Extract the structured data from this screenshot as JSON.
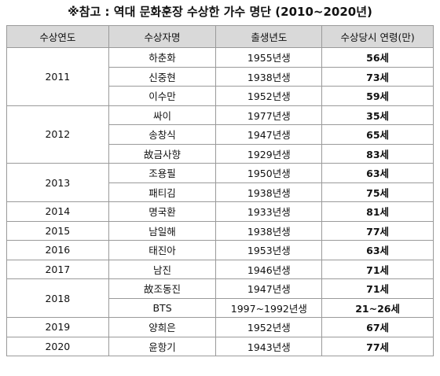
{
  "title": "※참고 : 역대 문화훈장 수상한 가수 명단 (2010~2020년)",
  "table": {
    "headers": [
      "수상연도",
      "수상자명",
      "출생년도",
      "수상당시 연령(만)"
    ],
    "groups": [
      {
        "year": "2011",
        "rows": [
          [
            "하춘화",
            "1955년생",
            "56세"
          ],
          [
            "신중현",
            "1938년생",
            "73세"
          ],
          [
            "이수만",
            "1952년생",
            "59세"
          ]
        ]
      },
      {
        "year": "2012",
        "rows": [
          [
            "싸이",
            "1977년생",
            "35세"
          ],
          [
            "송창식",
            "1947년생",
            "65세"
          ],
          [
            "故금사향",
            "1929년생",
            "83세"
          ]
        ]
      },
      {
        "year": "2013",
        "rows": [
          [
            "조용필",
            "1950년생",
            "63세"
          ],
          [
            "패티김",
            "1938년생",
            "75세"
          ]
        ]
      },
      {
        "year": "2014",
        "rows": [
          [
            "명국환",
            "1933년생",
            "81세"
          ]
        ]
      },
      {
        "year": "2015",
        "rows": [
          [
            "남일해",
            "1938년생",
            "77세"
          ]
        ]
      },
      {
        "year": "2016",
        "rows": [
          [
            "태진아",
            "1953년생",
            "63세"
          ]
        ]
      },
      {
        "year": "2017",
        "rows": [
          [
            "남진",
            "1946년생",
            "71세"
          ]
        ]
      },
      {
        "year": "2018",
        "rows": [
          [
            "故조동진",
            "1947년생",
            "71세"
          ],
          [
            "BTS",
            "1997~1992년생",
            "21~26세"
          ]
        ]
      },
      {
        "year": "2019",
        "rows": [
          [
            "양희은",
            "1952년생",
            "67세"
          ]
        ]
      },
      {
        "year": "2020",
        "rows": [
          [
            "윤항기",
            "1943년생",
            "77세"
          ]
        ]
      }
    ]
  }
}
